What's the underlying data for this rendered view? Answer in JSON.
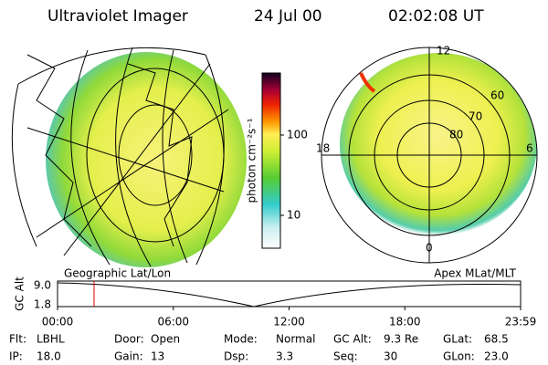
{
  "header": {
    "instrument": "Ultraviolet Imager",
    "date": "24 Jul 00",
    "time": "02:02:08 UT"
  },
  "colorbar": {
    "label": "photon cm⁻²s⁻¹",
    "ticks": [
      "100",
      "10"
    ]
  },
  "geo_plot": {
    "caption": "Geographic Lat/Lon"
  },
  "polar_plot": {
    "caption": "Apex MLat/MLT",
    "mlt_labels": [
      "12",
      "18",
      "6",
      "0"
    ],
    "lat_labels": [
      "60",
      "70",
      "80"
    ]
  },
  "altitude_plot": {
    "label": "GC Alt",
    "y_labels": [
      "9.0",
      "1.8"
    ],
    "x_labels": [
      "00:00",
      "06:00",
      "12:00",
      "18:00",
      "23:59"
    ]
  },
  "status": {
    "rows": [
      [
        {
          "key": "Flt:",
          "value": "LBHL"
        },
        {
          "key": "Door:",
          "value": "Open"
        },
        {
          "key": "Mode:",
          "value": "Normal"
        },
        {
          "key": "GC Alt:",
          "value": "9.3 Re"
        },
        {
          "key": "GLat:",
          "value": "68.5"
        }
      ],
      [
        {
          "key": "IP:",
          "value": "18.0"
        },
        {
          "key": "Gain:",
          "value": "13"
        },
        {
          "key": "Dsp:",
          "value": "3.3"
        },
        {
          "key": "Seq:",
          "value": "30"
        },
        {
          "key": "GLon:",
          "value": "23.0"
        }
      ]
    ]
  }
}
